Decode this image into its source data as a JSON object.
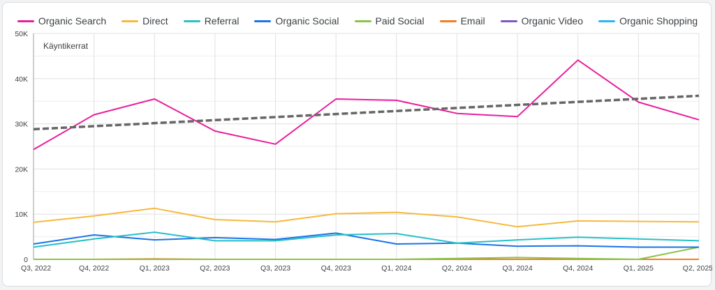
{
  "chart_data": {
    "type": "line",
    "inner_label": "Käyntikerrat",
    "categories": [
      "Q3, 2022",
      "Q4, 2022",
      "Q1, 2023",
      "Q2, 2023",
      "Q3, 2023",
      "Q4, 2023",
      "Q1, 2024",
      "Q2, 2024",
      "Q3, 2024",
      "Q4, 2024",
      "Q1, 2025",
      "Q2, 2025"
    ],
    "ylim": [
      0,
      50000
    ],
    "yticks": [
      0,
      10000,
      20000,
      30000,
      40000,
      50000
    ],
    "ytick_labels": [
      "0",
      "10K",
      "20K",
      "30K",
      "40K",
      "50K"
    ],
    "series": [
      {
        "name": "Organic Search",
        "color": "#e91e9c",
        "values": [
          24300,
          32000,
          35500,
          28400,
          25500,
          35500,
          35200,
          32300,
          31600,
          44100,
          34800,
          30900
        ]
      },
      {
        "name": "Direct",
        "color": "#f6b93b",
        "values": [
          8200,
          9600,
          11300,
          8800,
          8300,
          10100,
          10400,
          9400,
          7200,
          8500,
          8400,
          8300
        ]
      },
      {
        "name": "Referral",
        "color": "#26c0c7",
        "values": [
          2700,
          4500,
          6000,
          4100,
          4100,
          5400,
          5700,
          3600,
          4300,
          4900,
          4500,
          4100
        ]
      },
      {
        "name": "Organic Social",
        "color": "#1a73e8",
        "values": [
          3400,
          5400,
          4300,
          4800,
          4400,
          5800,
          3400,
          3600,
          2900,
          3000,
          2700,
          2700
        ]
      },
      {
        "name": "Paid Social",
        "color": "#8bc34a",
        "values": [
          0,
          0,
          0,
          0,
          0,
          0,
          0,
          200,
          400,
          200,
          0,
          2700
        ]
      },
      {
        "name": "Email",
        "color": "#f57c22",
        "values": [
          0,
          0,
          100,
          0,
          0,
          0,
          0,
          0,
          0,
          0,
          0,
          0
        ]
      },
      {
        "name": "Organic Video",
        "color": "#7e57c2",
        "values": [
          0,
          0,
          0,
          0,
          0,
          0,
          0,
          0,
          0,
          0,
          0,
          0
        ]
      },
      {
        "name": "Organic Shopping",
        "color": "#29b6f6",
        "values": [
          0,
          0,
          0,
          0,
          0,
          0,
          0,
          0,
          0,
          0,
          0,
          0
        ]
      }
    ],
    "trendline": {
      "series": "Organic Search",
      "color": "#666666",
      "style": "dashed",
      "start": 28800,
      "end": 36200
    },
    "legend_position": "top",
    "grid": true
  }
}
